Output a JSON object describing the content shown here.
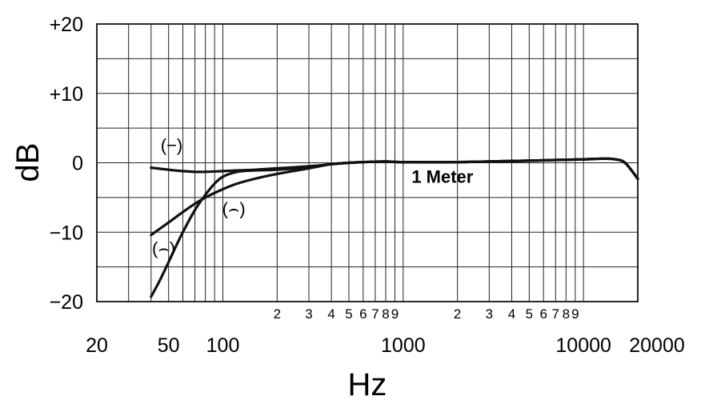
{
  "chart_data": {
    "type": "line",
    "xlabel": "Hz",
    "ylabel": "dB",
    "x_scale": "log",
    "xlim": [
      20,
      20000
    ],
    "ylim": [
      -20,
      20
    ],
    "grid": true,
    "y_ticks": [
      {
        "value": 20,
        "label": "+20"
      },
      {
        "value": 10,
        "label": "+10"
      },
      {
        "value": 0,
        "label": "0"
      },
      {
        "value": -10,
        "label": "−10"
      },
      {
        "value": -20,
        "label": "−20"
      }
    ],
    "x_major_ticks": [
      {
        "value": 20,
        "label": "20"
      },
      {
        "value": 50,
        "label": "50"
      },
      {
        "value": 100,
        "label": "100"
      },
      {
        "value": 1000,
        "label": "1000"
      },
      {
        "value": 10000,
        "label": "10000"
      },
      {
        "value": 20000,
        "label": "20000"
      }
    ],
    "x_minor_ticks": [
      {
        "value": 200,
        "label": "2"
      },
      {
        "value": 300,
        "label": "3"
      },
      {
        "value": 400,
        "label": "4"
      },
      {
        "value": 500,
        "label": "5"
      },
      {
        "value": 600,
        "label": "6"
      },
      {
        "value": 700,
        "label": "7"
      },
      {
        "value": 800,
        "label": "8"
      },
      {
        "value": 900,
        "label": "9"
      },
      {
        "value": 2000,
        "label": "2"
      },
      {
        "value": 3000,
        "label": "3"
      },
      {
        "value": 4000,
        "label": "4"
      },
      {
        "value": 5000,
        "label": "5"
      },
      {
        "value": 6000,
        "label": "6"
      },
      {
        "value": 7000,
        "label": "7"
      },
      {
        "value": 8000,
        "label": "8"
      },
      {
        "value": 9000,
        "label": "9"
      }
    ],
    "grid_x": [
      30,
      40,
      50,
      60,
      70,
      80,
      90,
      100,
      200,
      300,
      400,
      500,
      600,
      700,
      800,
      900,
      1000,
      2000,
      3000,
      4000,
      5000,
      6000,
      7000,
      8000,
      9000,
      10000
    ],
    "grid_y": [
      -15,
      -10,
      -5,
      0,
      5,
      10,
      15
    ],
    "series": [
      {
        "label": "(−)",
        "label_at": {
          "x": 52,
          "y": 1.7
        },
        "x": [
          40,
          50,
          60,
          70,
          80,
          100,
          120,
          150,
          200,
          300,
          400,
          500,
          600,
          800,
          1000,
          2000,
          3000,
          5000,
          7000,
          10000,
          13000,
          15000,
          17000,
          20000
        ],
        "y": [
          -0.7,
          -1.0,
          -1.2,
          -1.3,
          -1.3,
          -1.2,
          -1.1,
          -1.0,
          -0.8,
          -0.5,
          -0.2,
          0.0,
          0.1,
          0.2,
          0.1,
          0.1,
          0.2,
          0.3,
          0.4,
          0.5,
          0.6,
          0.5,
          0.0,
          -2.3
        ]
      },
      {
        "label": "(⌢)",
        "label_at": {
          "x": 115,
          "y": -7.5
        },
        "x": [
          40,
          50,
          60,
          70,
          80,
          100,
          120,
          150,
          200,
          300,
          400,
          500,
          600,
          800,
          1000,
          2000,
          3000,
          5000,
          7000,
          10000,
          13000,
          15000,
          17000,
          20000
        ],
        "y": [
          -10.4,
          -8.6,
          -7.1,
          -5.9,
          -5.0,
          -3.8,
          -3.0,
          -2.3,
          -1.6,
          -0.8,
          -0.2,
          0.0,
          0.1,
          0.2,
          0.1,
          0.1,
          0.2,
          0.3,
          0.4,
          0.5,
          0.6,
          0.5,
          0.0,
          -2.3
        ]
      },
      {
        "label": "(⌢)",
        "label_at": {
          "x": 47,
          "y": -13.2
        },
        "x": [
          40,
          45,
          50,
          55,
          60,
          70,
          80,
          90,
          100,
          120,
          150,
          200,
          300,
          400,
          500,
          600,
          800,
          1000,
          2000,
          3000,
          5000,
          7000,
          10000,
          13000,
          15000,
          17000,
          20000
        ],
        "y": [
          -19.3,
          -16.8,
          -14.3,
          -12.0,
          -10.0,
          -6.8,
          -4.6,
          -3.0,
          -2.0,
          -1.3,
          -1.1,
          -1.0,
          -0.6,
          -0.2,
          0.0,
          0.1,
          0.2,
          0.1,
          0.1,
          0.2,
          0.3,
          0.4,
          0.5,
          0.6,
          0.5,
          0.0,
          -2.3
        ]
      }
    ],
    "annotations": [
      {
        "text": "1 Meter",
        "x": 1650,
        "y": -2.9
      }
    ]
  }
}
